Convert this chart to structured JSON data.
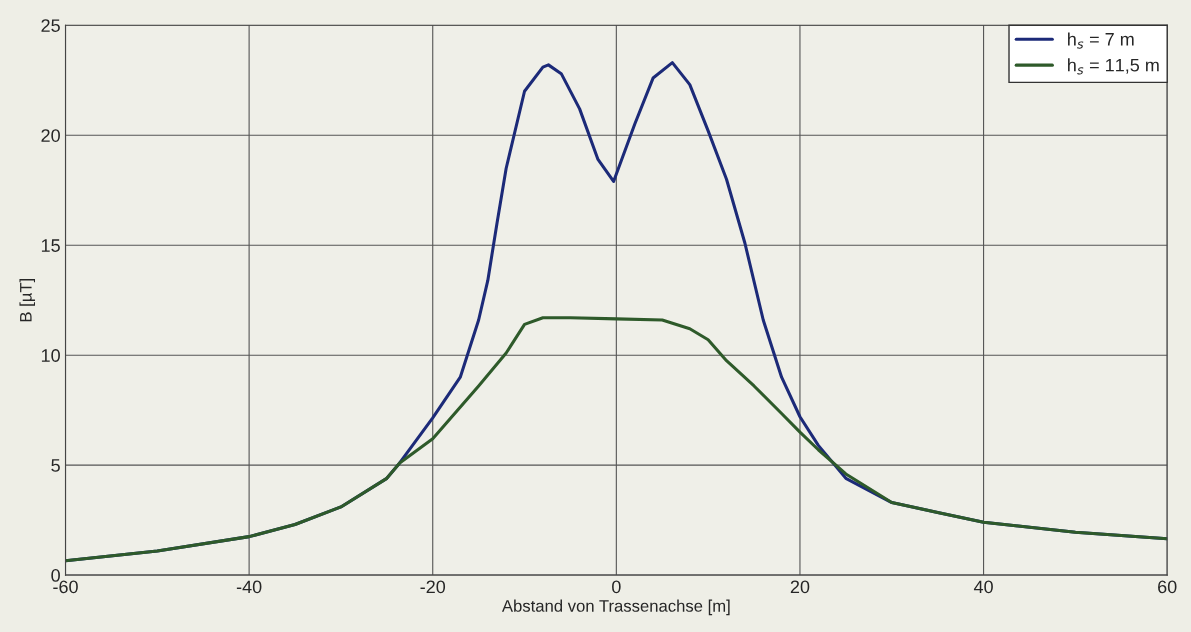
{
  "chart_data": {
    "type": "line",
    "xlabel": "Abstand von Trassenachse [m]",
    "ylabel": "B [µT]",
    "xlim": [
      -60,
      60
    ],
    "xticks": [
      -60,
      -40,
      -20,
      0,
      20,
      40,
      60
    ],
    "ylim": [
      0,
      25
    ],
    "yticks": [
      0,
      5,
      10,
      15,
      20,
      25
    ],
    "grid": true,
    "legend": "top right",
    "line_style": "solid",
    "marker": "none",
    "series": [
      {
        "name": "h$_{s}$ = 7 m",
        "color": "#1c2a78",
        "x": [
          -60,
          -50,
          -40,
          -35,
          -30,
          -25,
          -23.6,
          -20,
          -17,
          -15,
          -14,
          -13,
          -12,
          -10,
          -8,
          -7.4,
          -6,
          -4,
          -2,
          -0.3,
          2,
          4,
          6.1,
          8,
          10,
          12,
          14,
          16,
          18,
          20,
          22,
          25,
          30,
          35,
          40,
          50,
          60
        ],
        "values": [
          0.65,
          1.1,
          1.75,
          2.3,
          3.1,
          4.4,
          5.1,
          7.15,
          9.0,
          11.6,
          13.4,
          16.0,
          18.5,
          22.0,
          23.1,
          23.2,
          22.8,
          21.2,
          18.9,
          17.9,
          20.5,
          22.6,
          23.3,
          22.3,
          20.2,
          18.0,
          15.1,
          11.6,
          9.0,
          7.2,
          5.9,
          4.4,
          3.3,
          2.85,
          2.4,
          1.95,
          1.65
        ]
      },
      {
        "name": "h$_{s}$ = 11,5 m",
        "color": "#2e5a2a",
        "x": [
          -60,
          -50,
          -40,
          -35,
          -30,
          -25,
          -23.6,
          -20,
          -15,
          -12,
          -10,
          -8,
          -5,
          0,
          5,
          8,
          10,
          12,
          15,
          18,
          20,
          22,
          25,
          30,
          35,
          40,
          50,
          60
        ],
        "values": [
          0.65,
          1.1,
          1.75,
          2.3,
          3.1,
          4.4,
          5.1,
          6.2,
          8.6,
          10.1,
          11.4,
          11.7,
          11.7,
          11.65,
          11.6,
          11.2,
          10.7,
          9.75,
          8.6,
          7.35,
          6.5,
          5.7,
          4.6,
          3.3,
          2.85,
          2.4,
          1.95,
          1.65
        ]
      }
    ]
  }
}
